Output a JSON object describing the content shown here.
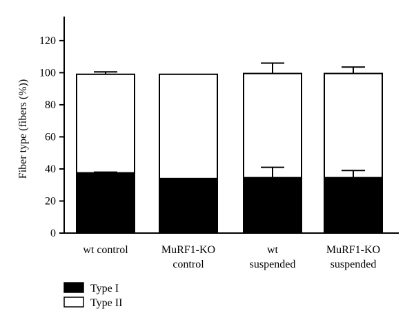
{
  "chart_data": {
    "type": "bar",
    "stacked": true,
    "ylabel": "Fiber type (fibers (%))",
    "ylim": [
      0,
      135
    ],
    "yticks": [
      0,
      20,
      40,
      60,
      80,
      100,
      120
    ],
    "grid": false,
    "legend_placement": "bottom-left",
    "categories": [
      [
        "wt control"
      ],
      [
        "MuRF1-KO",
        "control"
      ],
      [
        "wt",
        "suspended"
      ],
      [
        "MuRF1-KO",
        "suspended"
      ]
    ],
    "series": [
      {
        "name": "Type I",
        "color": "#000000",
        "values": [
          37.5,
          34,
          34.5,
          34.5
        ],
        "error": [
          0.5,
          0,
          6.5,
          4.5
        ]
      },
      {
        "name": "Type II",
        "color": "#ffffff",
        "values": [
          61.5,
          65,
          65,
          65
        ],
        "error": [
          1.5,
          0,
          6.5,
          4
        ]
      }
    ]
  }
}
